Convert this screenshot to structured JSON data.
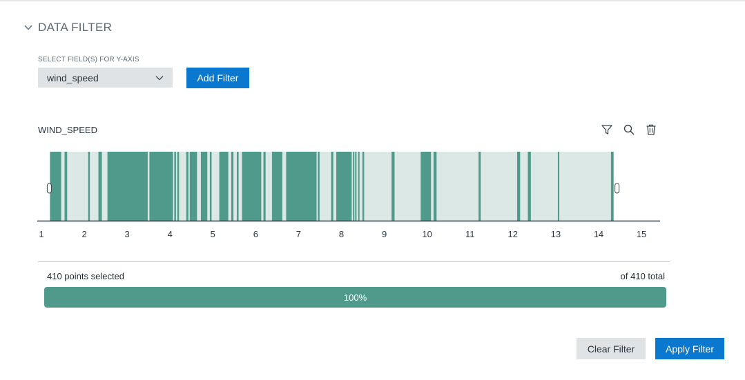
{
  "section": {
    "title": "DATA FILTER",
    "icon": "chevron-down-icon"
  },
  "field_select": {
    "label": "SELECT FIELD(S) FOR Y-AXIS",
    "value": "wind_speed"
  },
  "buttons": {
    "add_filter": "Add Filter",
    "clear_filter": "Clear Filter",
    "apply_filter": "Apply Filter"
  },
  "chart_tools": [
    "filter-icon",
    "search-icon",
    "trash-icon"
  ],
  "summary": {
    "selected_text": "410 points selected",
    "total_text": "of 410 total",
    "percent": 100,
    "percent_label": "100%"
  },
  "colors": {
    "accent": "#0b78d0",
    "teal": "#4f9a8b",
    "teal_light": "#dbe8e6"
  },
  "chart_data": {
    "type": "bar",
    "title": "WIND_SPEED",
    "xlim": [
      1,
      15
    ],
    "xticks": [
      1,
      2,
      3,
      4,
      5,
      6,
      7,
      8,
      9,
      10,
      11,
      12,
      13,
      14,
      15
    ],
    "range": [
      1.2,
      14.35
    ],
    "presence_segments": [
      [
        1.2,
        1.46
      ],
      [
        1.54,
        1.6
      ],
      [
        2.09,
        2.13
      ],
      [
        2.33,
        2.41
      ],
      [
        2.54,
        3.48
      ],
      [
        3.52,
        4.07
      ],
      [
        4.1,
        4.14
      ],
      [
        4.17,
        4.21
      ],
      [
        4.38,
        4.43
      ],
      [
        4.46,
        4.63
      ],
      [
        4.72,
        4.87
      ],
      [
        4.93,
        4.97
      ],
      [
        5.15,
        5.36
      ],
      [
        5.43,
        5.48
      ],
      [
        5.56,
        5.6
      ],
      [
        5.68,
        6.13
      ],
      [
        6.18,
        6.23
      ],
      [
        6.38,
        6.62
      ],
      [
        6.71,
        7.42
      ],
      [
        7.45,
        7.49
      ],
      [
        7.76,
        7.81
      ],
      [
        7.88,
        8.24
      ],
      [
        8.27,
        8.3
      ],
      [
        8.32,
        8.35
      ],
      [
        8.39,
        8.42
      ],
      [
        8.49,
        8.53
      ],
      [
        9.17,
        9.24
      ],
      [
        9.85,
        10.09
      ],
      [
        10.15,
        10.22
      ],
      [
        11.2,
        11.25
      ],
      [
        12.1,
        12.17
      ],
      [
        12.35,
        12.42
      ],
      [
        13.05,
        13.08
      ],
      [
        14.29,
        14.35
      ]
    ]
  }
}
